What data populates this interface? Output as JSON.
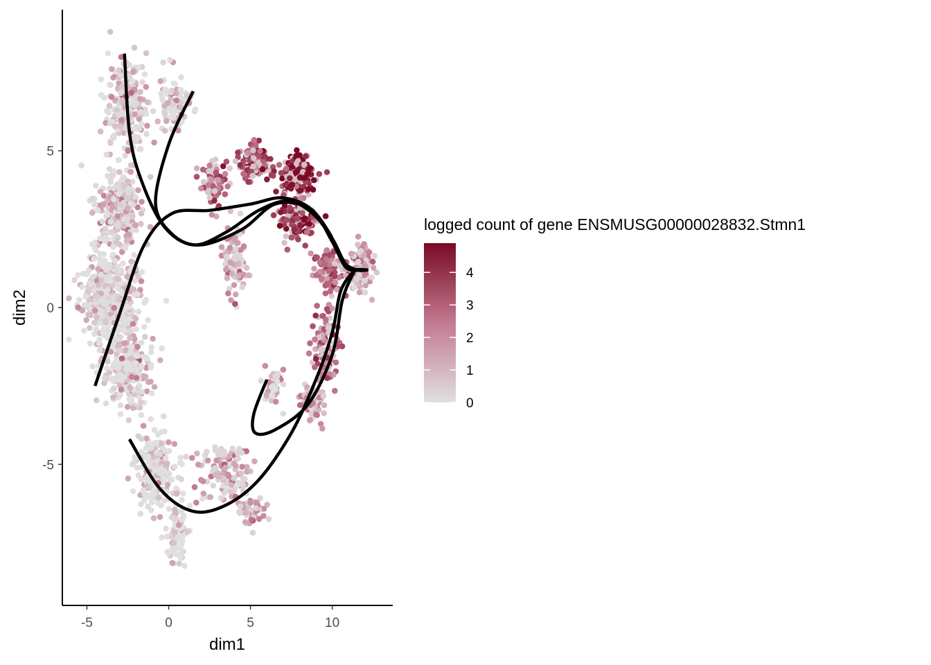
{
  "chart_data": {
    "type": "scatter",
    "xlabel": "dim1",
    "ylabel": "dim2",
    "xlim": [
      -6.5,
      13.7
    ],
    "ylim": [
      -9.5,
      9.5
    ],
    "x_ticks": [
      -5,
      0,
      5,
      10
    ],
    "y_ticks": [
      -5,
      0,
      5
    ],
    "grid": false,
    "legend": {
      "title": "logged count of gene ENSMUSG00000028832.Stmn1",
      "placement": "right",
      "type": "colorbar",
      "range": [
        0,
        4.9
      ],
      "ticks": [
        0,
        1,
        2,
        3,
        4
      ],
      "low_color": "#e0e0e0",
      "high_color": "#7a0a25"
    },
    "point_clusters": [
      {
        "cx": -2.5,
        "cy": 6.5,
        "sx": 1.2,
        "sy": 1.4,
        "n": 260,
        "expr": 0.7
      },
      {
        "cx": 0.5,
        "cy": 6.5,
        "sx": 1.0,
        "sy": 0.8,
        "n": 90,
        "expr": 0.4
      },
      {
        "cx": -3.0,
        "cy": 3.2,
        "sx": 1.1,
        "sy": 1.1,
        "n": 260,
        "expr": 0.8
      },
      {
        "cx": -3.5,
        "cy": 0.3,
        "sx": 1.6,
        "sy": 1.3,
        "n": 480,
        "expr": 0.4
      },
      {
        "cx": -2.5,
        "cy": -2.0,
        "sx": 1.3,
        "sy": 1.0,
        "n": 260,
        "expr": 0.3
      },
      {
        "cx": -0.8,
        "cy": -5.2,
        "sx": 1.2,
        "sy": 1.0,
        "n": 220,
        "expr": 0.3
      },
      {
        "cx": 0.5,
        "cy": -7.2,
        "sx": 0.6,
        "sy": 0.8,
        "n": 90,
        "expr": 0.2
      },
      {
        "cx": 3.5,
        "cy": -5.3,
        "sx": 1.5,
        "sy": 0.8,
        "n": 120,
        "expr": 1.3
      },
      {
        "cx": 5.0,
        "cy": -6.5,
        "sx": 0.8,
        "sy": 0.4,
        "n": 50,
        "expr": 1.6
      },
      {
        "cx": 4.0,
        "cy": 1.5,
        "sx": 0.6,
        "sy": 1.1,
        "n": 90,
        "expr": 1.3
      },
      {
        "cx": 2.8,
        "cy": 4.0,
        "sx": 0.8,
        "sy": 0.6,
        "n": 70,
        "expr": 2.7
      },
      {
        "cx": 5.3,
        "cy": 4.6,
        "sx": 0.9,
        "sy": 0.5,
        "n": 110,
        "expr": 3.6
      },
      {
        "cx": 8.0,
        "cy": 4.2,
        "sx": 1.0,
        "sy": 0.6,
        "n": 140,
        "expr": 4.2
      },
      {
        "cx": 7.8,
        "cy": 2.8,
        "sx": 1.0,
        "sy": 0.6,
        "n": 110,
        "expr": 3.7
      },
      {
        "cx": 9.8,
        "cy": 1.2,
        "sx": 0.8,
        "sy": 0.6,
        "n": 90,
        "expr": 2.8
      },
      {
        "cx": 11.8,
        "cy": 1.3,
        "sx": 0.6,
        "sy": 0.7,
        "n": 110,
        "expr": 1.3
      },
      {
        "cx": 9.6,
        "cy": -1.3,
        "sx": 0.7,
        "sy": 1.0,
        "n": 120,
        "expr": 2.6
      },
      {
        "cx": 8.8,
        "cy": -3.0,
        "sx": 0.7,
        "sy": 0.5,
        "n": 80,
        "expr": 1.7
      },
      {
        "cx": 6.5,
        "cy": -2.5,
        "sx": 0.6,
        "sy": 0.5,
        "n": 50,
        "expr": 0.8
      }
    ],
    "curves": [
      {
        "name": "",
        "points": [
          [
            -2.7,
            8.1
          ],
          [
            -2.4,
            5.6
          ],
          [
            -1.7,
            4.1
          ],
          [
            -0.3,
            2.6
          ],
          [
            1.5,
            2.0
          ],
          [
            3.5,
            2.4
          ],
          [
            5.5,
            3.1
          ],
          [
            7.3,
            3.4
          ],
          [
            8.8,
            3.0
          ],
          [
            10.0,
            2.2
          ],
          [
            10.8,
            1.4
          ],
          [
            11.5,
            1.2
          ],
          [
            12.2,
            1.2
          ]
        ]
      },
      {
        "name": "",
        "points": [
          [
            1.5,
            6.9
          ],
          [
            0.0,
            5.2
          ],
          [
            -0.8,
            3.3
          ],
          [
            0.3,
            2.3
          ],
          [
            2.0,
            2.0
          ],
          [
            4.5,
            2.5
          ],
          [
            6.5,
            3.3
          ],
          [
            8.5,
            3.2
          ],
          [
            9.8,
            2.4
          ],
          [
            10.6,
            1.5
          ],
          [
            11.5,
            1.2
          ],
          [
            12.2,
            1.2
          ]
        ]
      },
      {
        "name": "",
        "points": [
          [
            -4.5,
            -2.5
          ],
          [
            -3.0,
            -0.2
          ],
          [
            -1.5,
            2.0
          ],
          [
            0.2,
            3.0
          ],
          [
            2.5,
            3.1
          ],
          [
            5.0,
            3.3
          ],
          [
            7.0,
            3.5
          ],
          [
            8.8,
            3.1
          ],
          [
            10.0,
            2.1
          ],
          [
            10.8,
            1.3
          ],
          [
            11.5,
            1.2
          ],
          [
            12.2,
            1.2
          ]
        ]
      },
      {
        "name": "",
        "points": [
          [
            6.0,
            -2.3
          ],
          [
            5.2,
            -3.4
          ],
          [
            5.3,
            -4.0
          ],
          [
            6.5,
            -3.9
          ],
          [
            8.5,
            -3.1
          ],
          [
            10.0,
            -1.5
          ],
          [
            10.6,
            0.2
          ],
          [
            11.2,
            1.0
          ],
          [
            11.5,
            1.2
          ],
          [
            12.2,
            1.2
          ]
        ]
      },
      {
        "name": "",
        "points": [
          [
            -2.4,
            -4.2
          ],
          [
            -0.5,
            -5.8
          ],
          [
            1.5,
            -6.5
          ],
          [
            3.5,
            -6.3
          ],
          [
            5.5,
            -5.5
          ],
          [
            7.5,
            -4.0
          ],
          [
            9.0,
            -2.3
          ],
          [
            10.0,
            -0.8
          ],
          [
            10.5,
            0.5
          ],
          [
            11.2,
            1.1
          ],
          [
            11.5,
            1.2
          ],
          [
            12.2,
            1.2
          ]
        ]
      }
    ]
  }
}
